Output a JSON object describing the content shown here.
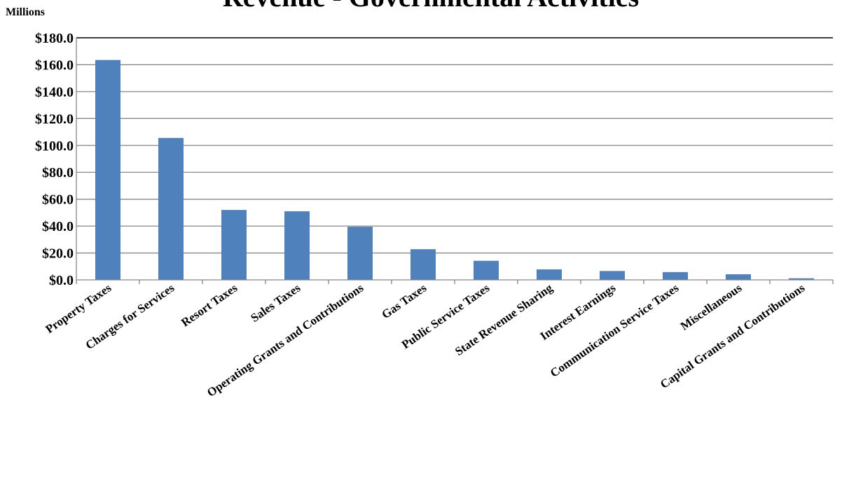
{
  "chart_data": {
    "type": "bar",
    "title": "Revenue - Governmental Activities",
    "unit_label": "Millions",
    "xlabel": "",
    "ylabel": "",
    "ylim": [
      0,
      180
    ],
    "ytick_values": [
      0,
      20,
      40,
      60,
      80,
      100,
      120,
      140,
      160,
      180
    ],
    "ytick_labels": [
      "$0.0",
      "$20.0",
      "$40.0",
      "$60.0",
      "$80.0",
      "$100.0",
      "$120.0",
      "$140.0",
      "$160.0",
      "$180.0"
    ],
    "categories": [
      "Property Taxes",
      "Charges for Services",
      "Resort Taxes",
      "Sales Taxes",
      "Operating Grants and Contributions",
      "Gas Taxes",
      "Public Service Taxes",
      "State Revenue Sharing",
      "Interest Earnings",
      "Communication Service Taxes",
      "Miscellaneous",
      "Capital Grants and Contributions"
    ],
    "values": [
      163.5,
      105.5,
      52.0,
      51.0,
      39.5,
      22.8,
      14.2,
      7.8,
      6.6,
      5.8,
      4.2,
      1.2
    ],
    "grid": true,
    "legend": "none",
    "bar_color": "#4f81bd"
  }
}
